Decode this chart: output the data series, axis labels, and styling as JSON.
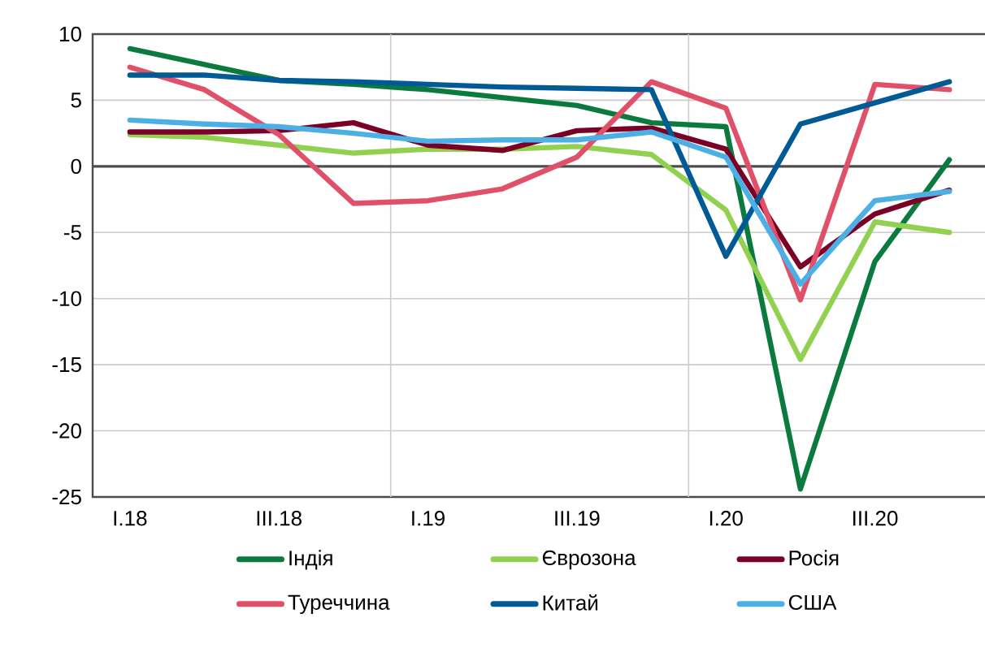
{
  "chart_data": {
    "type": "line",
    "categories": [
      "I.18",
      null,
      "III.18",
      null,
      "I.19",
      null,
      "III.19",
      null,
      "I.20",
      null,
      "III.20",
      null
    ],
    "series": [
      {
        "name": "Індія",
        "color": "#0b7a3e",
        "values": [
          8.9,
          7.7,
          6.5,
          6.2,
          5.8,
          5.2,
          4.6,
          3.3,
          3.0,
          -24.4,
          -7.2,
          0.5
        ]
      },
      {
        "name": "Єврозона",
        "color": "#92d050",
        "values": [
          2.4,
          2.2,
          1.6,
          1.0,
          1.3,
          1.3,
          1.5,
          0.9,
          -3.3,
          -14.6,
          -4.2,
          -5.0
        ]
      },
      {
        "name": "Росія",
        "color": "#7b0025",
        "values": [
          2.6,
          2.6,
          2.7,
          3.3,
          1.6,
          1.2,
          2.7,
          2.9,
          1.3,
          -7.6,
          -3.6,
          -1.8
        ]
      },
      {
        "name": "Туреччина",
        "color": "#e05068",
        "values": [
          7.5,
          5.8,
          2.4,
          -2.8,
          -2.6,
          -1.7,
          0.7,
          6.4,
          4.4,
          -10.1,
          6.2,
          5.8
        ]
      },
      {
        "name": "Китай",
        "color": "#005a96",
        "values": [
          6.9,
          6.9,
          6.5,
          6.4,
          6.2,
          6.0,
          5.9,
          5.8,
          -6.8,
          3.2,
          4.8,
          6.4
        ]
      },
      {
        "name": "США",
        "color": "#4cb0e6",
        "values": [
          3.5,
          3.2,
          3.0,
          2.5,
          1.9,
          2.0,
          2.0,
          2.6,
          0.7,
          -8.9,
          -2.6,
          -1.9
        ]
      }
    ],
    "ylim": [
      -25,
      10
    ],
    "yticks": [
      -25,
      -20,
      -15,
      -10,
      -5,
      0,
      5,
      10
    ],
    "grid": "y",
    "legend": "bottom",
    "marker": "none",
    "line_style": "solid"
  }
}
